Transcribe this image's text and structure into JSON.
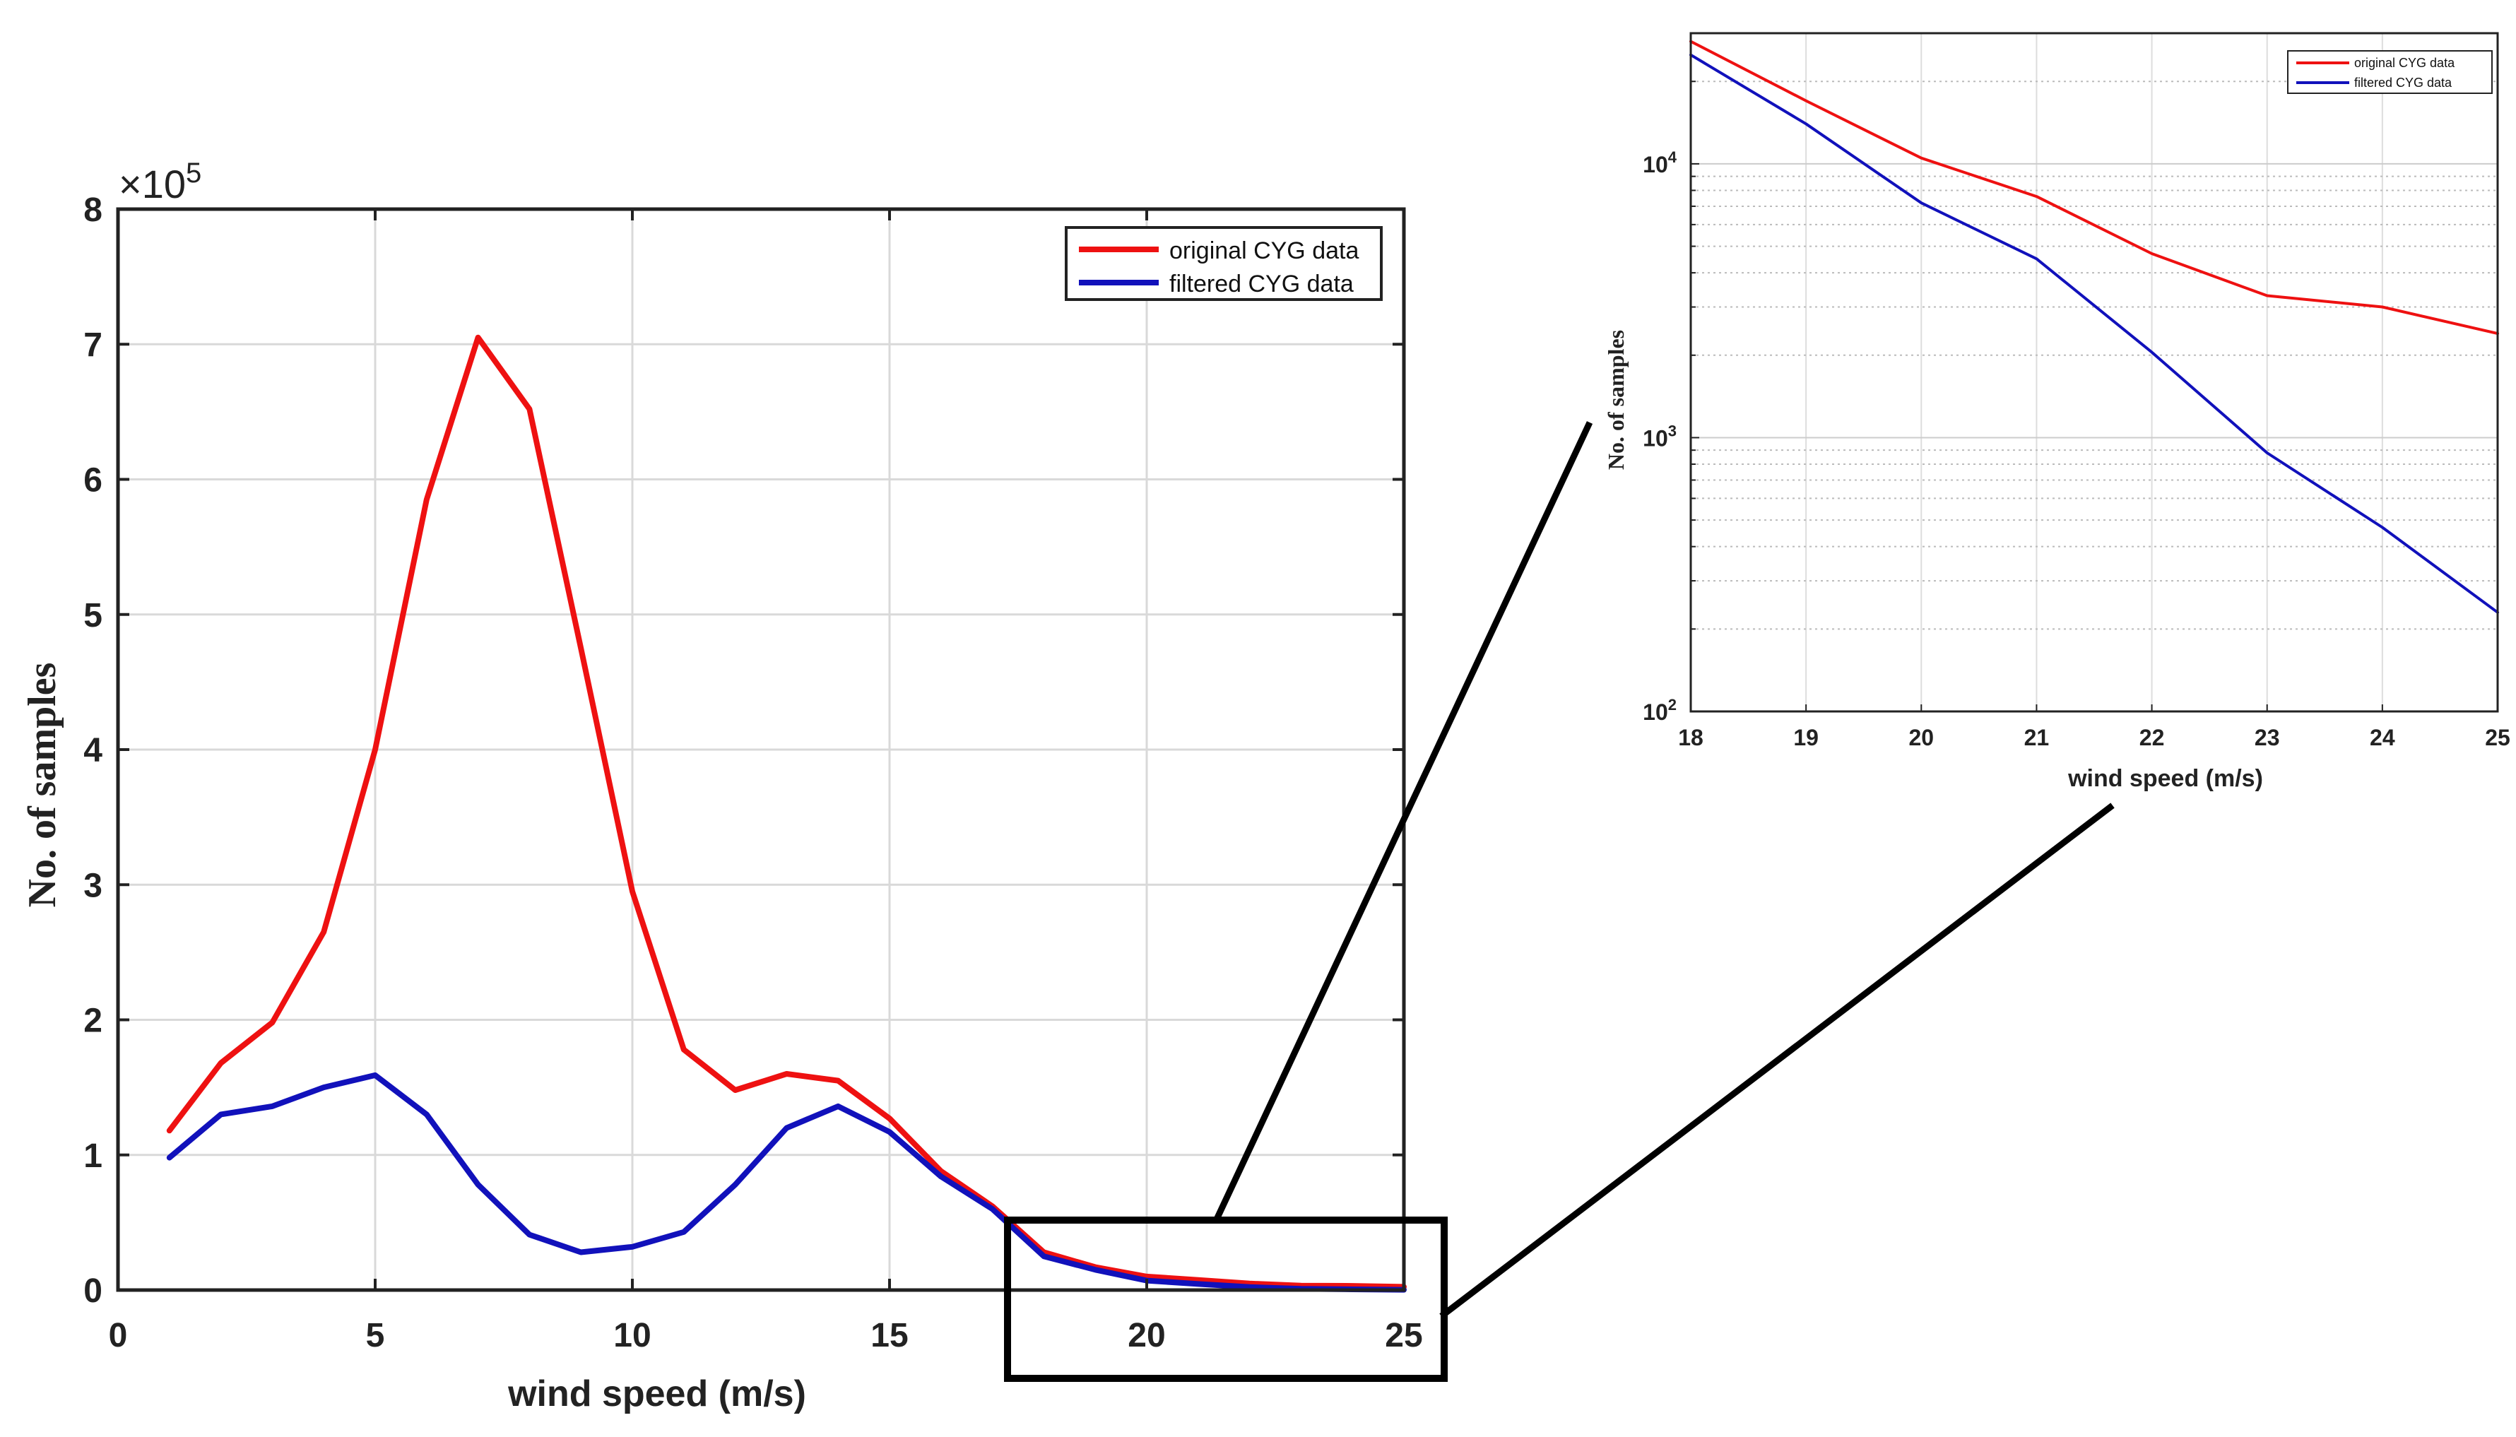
{
  "chart_data": [
    {
      "type": "line",
      "title": "",
      "xlabel": "wind speed  (m/s)",
      "ylabel": "No. of samples",
      "yscale_label": "×10",
      "yscale_exponent": "5",
      "xlim": [
        0,
        25
      ],
      "ylim": [
        0,
        8
      ],
      "x_ticks": [
        "0",
        "5",
        "10",
        "15",
        "20",
        "25"
      ],
      "y_ticks": [
        "0",
        "1",
        "2",
        "3",
        "4",
        "5",
        "6",
        "7",
        "8"
      ],
      "grid": true,
      "legend_position": "top-right",
      "x": [
        1,
        2,
        3,
        4,
        5,
        6,
        7,
        8,
        9,
        10,
        11,
        12,
        13,
        14,
        15,
        16,
        17,
        18,
        19,
        20,
        21,
        22,
        23,
        24,
        25
      ],
      "series": [
        {
          "name": "original CYG data",
          "color": "#ee1111",
          "values": [
            1.18,
            1.68,
            1.98,
            2.65,
            4.0,
            5.85,
            7.05,
            6.52,
            4.75,
            2.95,
            1.78,
            1.48,
            1.6,
            1.55,
            1.27,
            0.88,
            0.62,
            0.28,
            0.17,
            0.1,
            0.075,
            0.048,
            0.033,
            0.031,
            0.024
          ]
        },
        {
          "name": "filtered CYG data",
          "color": "#1111bb",
          "values": [
            0.98,
            1.3,
            1.36,
            1.5,
            1.59,
            1.3,
            0.78,
            0.41,
            0.28,
            0.32,
            0.43,
            0.78,
            1.2,
            1.36,
            1.17,
            0.84,
            0.6,
            0.25,
            0.15,
            0.07,
            0.045,
            0.022,
            0.009,
            0.005,
            0.002
          ]
        }
      ]
    },
    {
      "type": "line",
      "title": "",
      "xlabel": "wind speed  (m/s)",
      "ylabel": "No. of samples",
      "yscale": "log",
      "xlim": [
        18,
        25
      ],
      "ylim": [
        100,
        30000
      ],
      "x_ticks": [
        "18",
        "19",
        "20",
        "21",
        "22",
        "23",
        "24",
        "25"
      ],
      "y_ticks": [
        {
          "base": "10",
          "exp": "2"
        },
        {
          "base": "10",
          "exp": "3"
        },
        {
          "base": "10",
          "exp": "4"
        }
      ],
      "grid": true,
      "legend_position": "top-right",
      "x": [
        18,
        19,
        20,
        21,
        22,
        23,
        24,
        25
      ],
      "series": [
        {
          "name": "original CYG data",
          "color": "#ee1111",
          "values": [
            28000,
            17000,
            10500,
            7600,
            4700,
            3300,
            3000,
            2400
          ]
        },
        {
          "name": "filtered CYG data",
          "color": "#1111bb",
          "values": [
            25000,
            14000,
            7200,
            4500,
            2050,
            880,
            470,
            230
          ]
        }
      ]
    }
  ]
}
